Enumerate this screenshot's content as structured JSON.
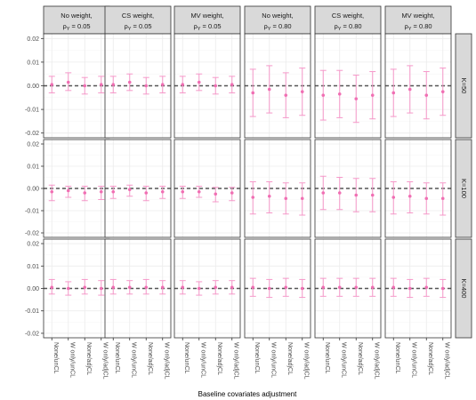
{
  "chart_data": {
    "type": "errorbar",
    "xlabel": "Baseline covariates adjustment",
    "ylabel": "",
    "categories": [
      "None/unCL",
      "W only/unCL",
      "None/adjCL",
      "W only/adjCL"
    ],
    "ylim": [
      -0.022,
      0.022
    ],
    "yticks": [
      -0.02,
      -0.01,
      0.0,
      0.01,
      0.02
    ],
    "ytick_labels": [
      "-0.02",
      "-0.01",
      "0.00",
      "0.01",
      "0.02"
    ],
    "reference_line": 0,
    "grid": true,
    "columns": [
      {
        "line1": "No weight,",
        "line2": "ρ",
        "sub": "Y",
        "line3": " = 0.05"
      },
      {
        "line1": "CS weight,",
        "line2": "ρ",
        "sub": "Y",
        "line3": " = 0.05"
      },
      {
        "line1": "MV weight,",
        "line2": "ρ",
        "sub": "Y",
        "line3": " = 0.05"
      },
      {
        "line1": "No weight,",
        "line2": "ρ",
        "sub": "Y",
        "line3": " = 0.80"
      },
      {
        "line1": "CS weight,",
        "line2": "ρ",
        "sub": "Y",
        "line3": " = 0.80"
      },
      {
        "line1": "MV weight,",
        "line2": "ρ",
        "sub": "Y",
        "line3": " = 0.80"
      }
    ],
    "rows": [
      "K=50",
      "K=100",
      "K=400"
    ],
    "panels": [
      [
        [
          {
            "y": 0.0005,
            "lo": -0.003,
            "hi": 0.004
          },
          {
            "y": 0.0015,
            "lo": -0.002,
            "hi": 0.0055
          },
          {
            "y": 0.0,
            "lo": -0.0035,
            "hi": 0.0035
          },
          {
            "y": 0.0005,
            "lo": -0.003,
            "hi": 0.004
          }
        ],
        [
          {
            "y": 0.0005,
            "lo": -0.003,
            "hi": 0.004
          },
          {
            "y": 0.0015,
            "lo": -0.002,
            "hi": 0.005
          },
          {
            "y": 0.0,
            "lo": -0.0035,
            "hi": 0.0035
          },
          {
            "y": 0.0005,
            "lo": -0.003,
            "hi": 0.004
          }
        ],
        [
          {
            "y": 0.0005,
            "lo": -0.003,
            "hi": 0.004
          },
          {
            "y": 0.0015,
            "lo": -0.002,
            "hi": 0.005
          },
          {
            "y": 0.0,
            "lo": -0.0035,
            "hi": 0.0035
          },
          {
            "y": 0.0005,
            "lo": -0.003,
            "hi": 0.004
          }
        ],
        [
          {
            "y": -0.003,
            "lo": -0.013,
            "hi": 0.007
          },
          {
            "y": -0.0015,
            "lo": -0.0115,
            "hi": 0.0085
          },
          {
            "y": -0.004,
            "lo": -0.0135,
            "hi": 0.0055
          },
          {
            "y": -0.0025,
            "lo": -0.0125,
            "hi": 0.0075
          }
        ],
        [
          {
            "y": -0.004,
            "lo": -0.0145,
            "hi": 0.0065
          },
          {
            "y": -0.0035,
            "lo": -0.0135,
            "hi": 0.0065
          },
          {
            "y": -0.0055,
            "lo": -0.0155,
            "hi": 0.0045
          },
          {
            "y": -0.004,
            "lo": -0.014,
            "hi": 0.006
          }
        ],
        [
          {
            "y": -0.003,
            "lo": -0.013,
            "hi": 0.007
          },
          {
            "y": -0.0015,
            "lo": -0.0115,
            "hi": 0.0085
          },
          {
            "y": -0.004,
            "lo": -0.014,
            "hi": 0.006
          },
          {
            "y": -0.0025,
            "lo": -0.0125,
            "hi": 0.0075
          }
        ]
      ],
      [
        [
          {
            "y": -0.0015,
            "lo": -0.0055,
            "hi": 0.0015
          },
          {
            "y": -0.001,
            "lo": -0.004,
            "hi": 0.001
          },
          {
            "y": -0.002,
            "lo": -0.0055,
            "hi": 0.001
          },
          {
            "y": -0.0015,
            "lo": -0.005,
            "hi": 0.001
          }
        ],
        [
          {
            "y": -0.0015,
            "lo": -0.0045,
            "hi": 0.001
          },
          {
            "y": -0.0005,
            "lo": -0.0035,
            "hi": 0.0015
          },
          {
            "y": -0.002,
            "lo": -0.0055,
            "hi": 0.001
          },
          {
            "y": -0.0015,
            "lo": -0.0045,
            "hi": 0.001
          }
        ],
        [
          {
            "y": -0.0015,
            "lo": -0.0045,
            "hi": 0.001
          },
          {
            "y": -0.0015,
            "lo": -0.004,
            "hi": 0.001
          },
          {
            "y": -0.0025,
            "lo": -0.006,
            "hi": 0.0005
          },
          {
            "y": -0.002,
            "lo": -0.0055,
            "hi": 0.0005
          }
        ],
        [
          {
            "y": -0.004,
            "lo": -0.0115,
            "hi": 0.003
          },
          {
            "y": -0.0035,
            "lo": -0.011,
            "hi": 0.003
          },
          {
            "y": -0.0045,
            "lo": -0.0115,
            "hi": 0.0025
          },
          {
            "y": -0.0045,
            "lo": -0.012,
            "hi": 0.0025
          }
        ],
        [
          {
            "y": -0.002,
            "lo": -0.0095,
            "hi": 0.0055
          },
          {
            "y": -0.002,
            "lo": -0.0095,
            "hi": 0.005
          },
          {
            "y": -0.003,
            "lo": -0.0105,
            "hi": 0.0045
          },
          {
            "y": -0.003,
            "lo": -0.0105,
            "hi": 0.0045
          }
        ],
        [
          {
            "y": -0.004,
            "lo": -0.0115,
            "hi": 0.003
          },
          {
            "y": -0.0035,
            "lo": -0.011,
            "hi": 0.003
          },
          {
            "y": -0.0045,
            "lo": -0.0115,
            "hi": 0.0025
          },
          {
            "y": -0.0045,
            "lo": -0.012,
            "hi": 0.0025
          }
        ]
      ],
      [
        [
          {
            "y": 0.0005,
            "lo": -0.0025,
            "hi": 0.004
          },
          {
            "y": 0.0,
            "lo": -0.003,
            "hi": 0.003
          },
          {
            "y": 0.0005,
            "lo": -0.0025,
            "hi": 0.004
          },
          {
            "y": 0.0,
            "lo": -0.003,
            "hi": 0.0035
          }
        ],
        [
          {
            "y": 0.0005,
            "lo": -0.0025,
            "hi": 0.004
          },
          {
            "y": 0.0005,
            "lo": -0.0025,
            "hi": 0.0035
          },
          {
            "y": 0.0005,
            "lo": -0.0025,
            "hi": 0.004
          },
          {
            "y": 0.0005,
            "lo": -0.0025,
            "hi": 0.0035
          }
        ],
        [
          {
            "y": 0.0005,
            "lo": -0.0025,
            "hi": 0.0035
          },
          {
            "y": 0.0,
            "lo": -0.003,
            "hi": 0.003
          },
          {
            "y": 0.0005,
            "lo": -0.0025,
            "hi": 0.0035
          },
          {
            "y": 0.0005,
            "lo": -0.0025,
            "hi": 0.0035
          }
        ],
        [
          {
            "y": 0.0005,
            "lo": -0.0035,
            "hi": 0.0045
          },
          {
            "y": 0.0,
            "lo": -0.004,
            "hi": 0.004
          },
          {
            "y": 0.0005,
            "lo": -0.0035,
            "hi": 0.0045
          },
          {
            "y": 0.0,
            "lo": -0.004,
            "hi": 0.004
          }
        ],
        [
          {
            "y": 0.0005,
            "lo": -0.0035,
            "hi": 0.0045
          },
          {
            "y": 0.0005,
            "lo": -0.0035,
            "hi": 0.0045
          },
          {
            "y": 0.0005,
            "lo": -0.0035,
            "hi": 0.0045
          },
          {
            "y": 0.0005,
            "lo": -0.0035,
            "hi": 0.0045
          }
        ],
        [
          {
            "y": 0.0005,
            "lo": -0.0035,
            "hi": 0.0045
          },
          {
            "y": 0.0,
            "lo": -0.004,
            "hi": 0.004
          },
          {
            "y": 0.0005,
            "lo": -0.0035,
            "hi": 0.0045
          },
          {
            "y": 0.0,
            "lo": -0.004,
            "hi": 0.004
          }
        ]
      ]
    ],
    "colors": {
      "point": "#f06fb3",
      "errorbar": "#f598c9",
      "strip_fill": "#d9d9d9",
      "panel_border": "#333333",
      "grid_major": "#ebebeb",
      "grid_minor": "#f5f5f5",
      "reference_line": "#555555"
    }
  }
}
